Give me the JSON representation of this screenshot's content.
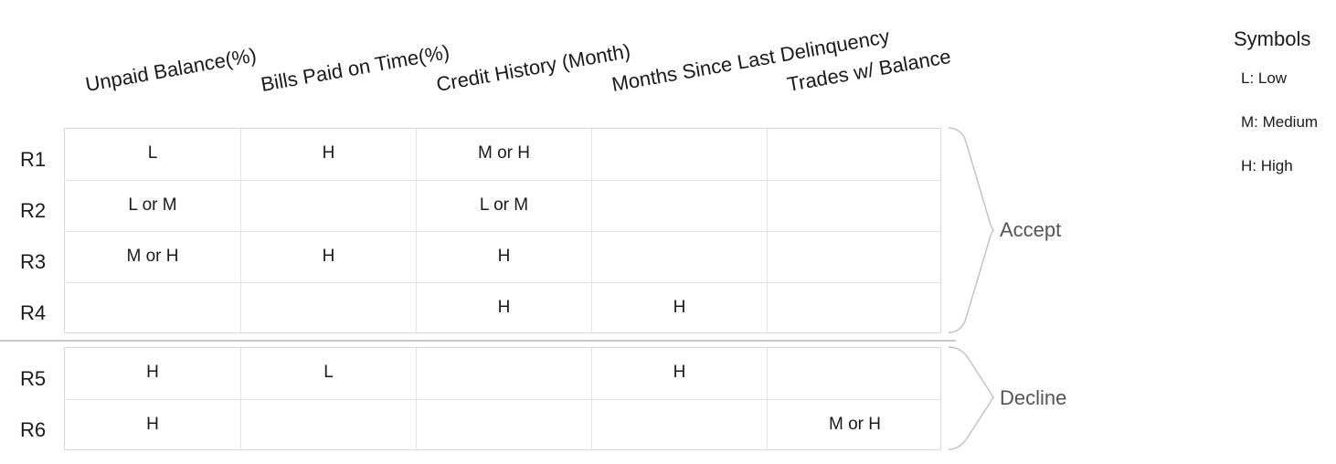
{
  "columns": [
    "Unpaid Balance(%)",
    "Bills Paid on Time(%)",
    "Credit History (Month)",
    "Months Since Last Delinquency",
    "Trades w/ Balance"
  ],
  "groups": [
    {
      "label": "Accept",
      "rows": [
        {
          "label": "R1",
          "cells": [
            "L",
            "H",
            "M or H",
            "",
            ""
          ]
        },
        {
          "label": "R2",
          "cells": [
            "L or M",
            "",
            "L or M",
            "",
            ""
          ]
        },
        {
          "label": "R3",
          "cells": [
            "M or H",
            "H",
            "H",
            "",
            ""
          ]
        },
        {
          "label": "R4",
          "cells": [
            "",
            "",
            "H",
            "H",
            ""
          ]
        }
      ]
    },
    {
      "label": "Decline",
      "rows": [
        {
          "label": "R5",
          "cells": [
            "H",
            "L",
            "",
            "H",
            ""
          ]
        },
        {
          "label": "R6",
          "cells": [
            "H",
            "",
            "",
            "",
            "M or H"
          ]
        }
      ]
    }
  ],
  "legend": {
    "title": "Symbols",
    "items": [
      "L: Low",
      "M: Medium",
      "H: High"
    ]
  }
}
